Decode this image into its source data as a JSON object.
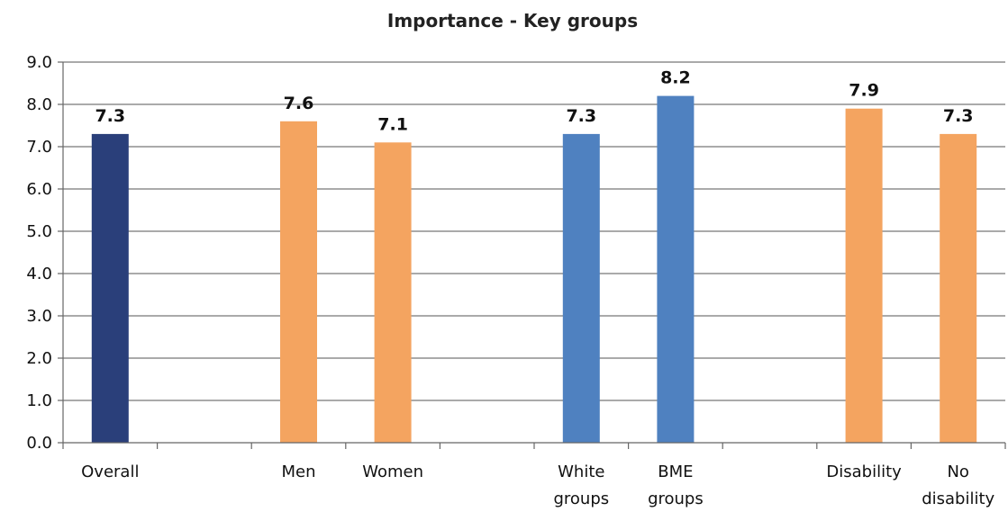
{
  "chart_data": {
    "type": "bar",
    "title": "Importance - Key groups",
    "xlabel": "",
    "ylabel": "",
    "ylim": [
      0,
      9
    ],
    "yticks": [
      "0.0",
      "1.0",
      "2.0",
      "3.0",
      "4.0",
      "5.0",
      "6.0",
      "7.0",
      "8.0",
      "9.0"
    ],
    "grid": true,
    "legend": "none",
    "categories": [
      [
        "Overall"
      ],
      [
        ""
      ],
      [
        "Men"
      ],
      [
        "Women"
      ],
      [
        ""
      ],
      [
        "White",
        "groups"
      ],
      [
        "BME",
        "groups"
      ],
      [
        ""
      ],
      [
        "Disability"
      ],
      [
        "No",
        "disability"
      ]
    ],
    "values": [
      7.3,
      null,
      7.6,
      7.1,
      null,
      7.3,
      8.2,
      null,
      7.9,
      7.3
    ],
    "labels": [
      "7.3",
      "",
      "7.6",
      "7.1",
      "",
      "7.3",
      "8.2",
      "",
      "7.9",
      "7.3"
    ],
    "colors": [
      "#2a3f7a",
      null,
      "#f4a460",
      "#f4a460",
      null,
      "#4f81c0",
      "#4f81c0",
      null,
      "#f4a460",
      "#f4a460"
    ]
  }
}
